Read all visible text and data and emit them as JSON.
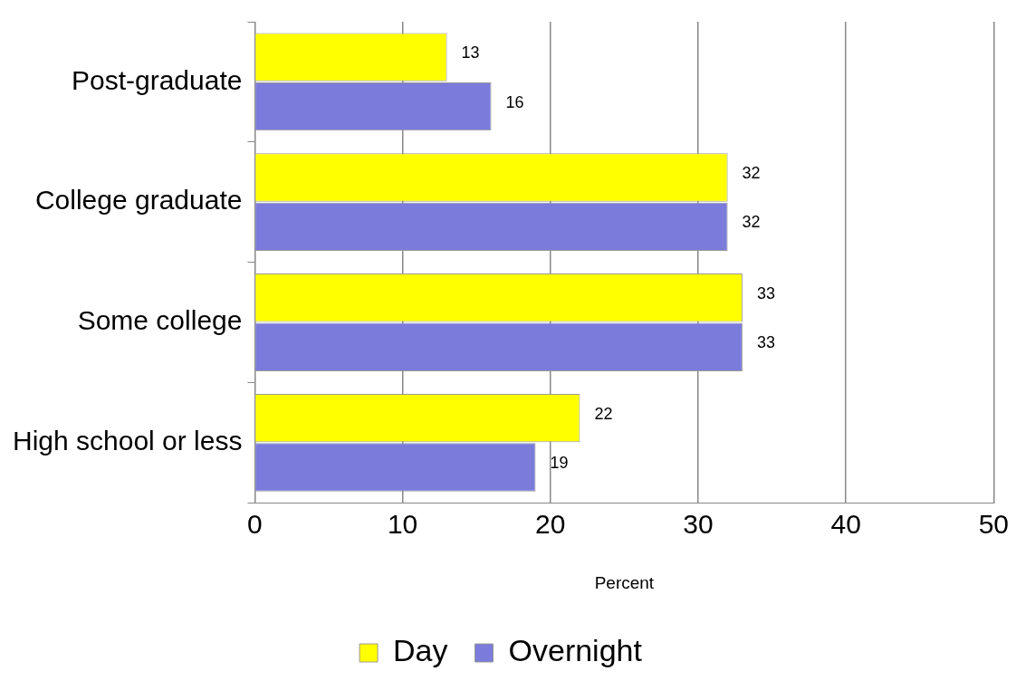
{
  "chart_data": {
    "type": "bar",
    "orientation": "horizontal",
    "xlabel": "Percent",
    "categories": [
      "Post-graduate",
      "College graduate",
      "Some college",
      "High school or less"
    ],
    "series": [
      {
        "name": "Day",
        "color": "#ffff00",
        "values": [
          13,
          32,
          33,
          22
        ]
      },
      {
        "name": "Overnight",
        "color": "#7b7bdb",
        "values": [
          16,
          32,
          33,
          19
        ]
      }
    ],
    "xlim": [
      0,
      50
    ],
    "xticks": [
      0,
      10,
      20,
      30,
      40,
      50
    ],
    "grid": "x",
    "legend": "bottom",
    "data_labels": true
  }
}
